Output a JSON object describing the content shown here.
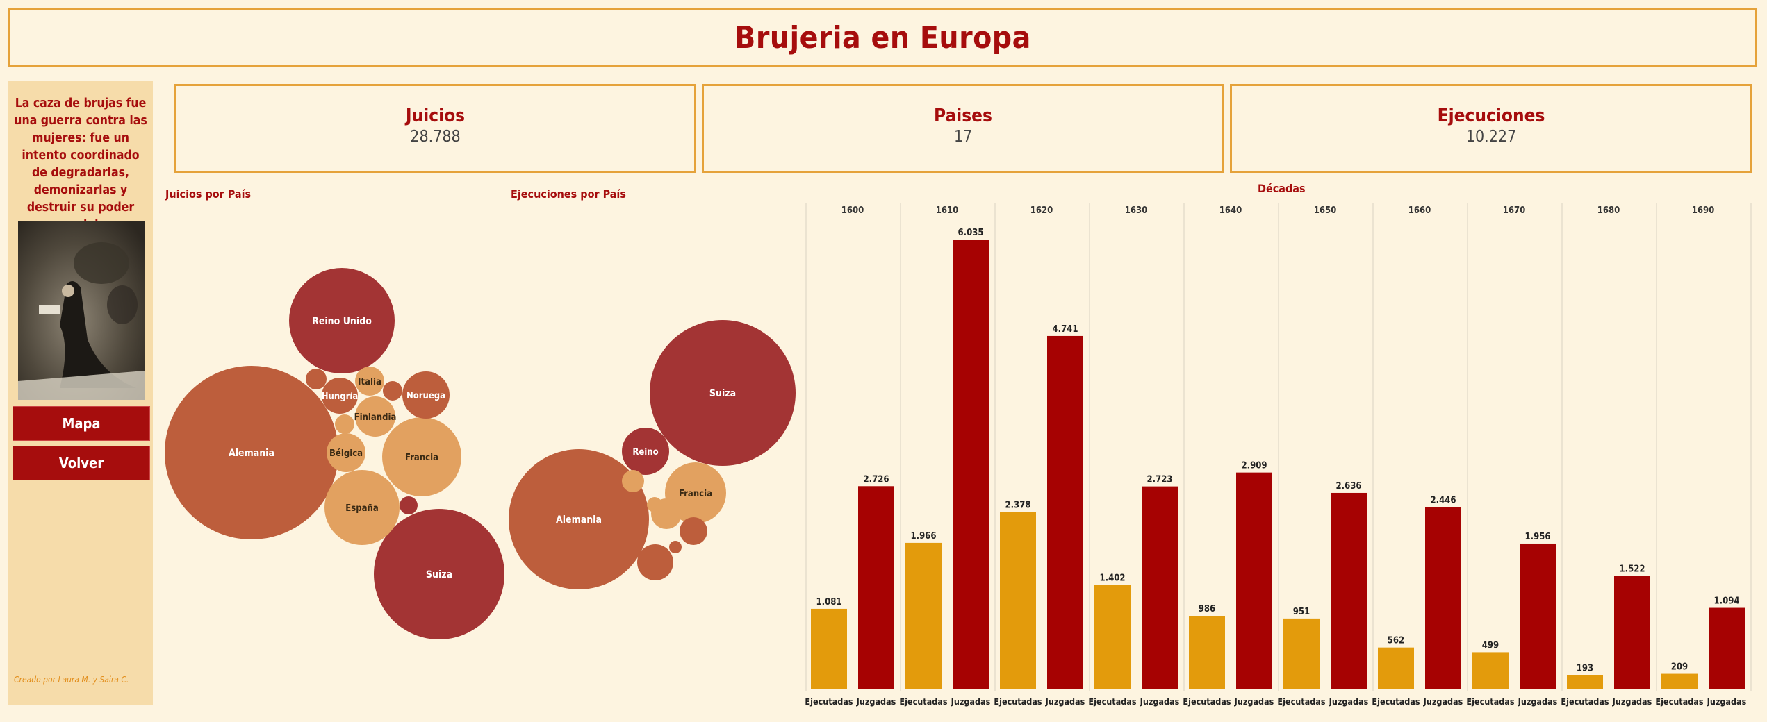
{
  "title": "Brujeria en Europa",
  "sidebar": {
    "quote": "La caza de brujas fue una guerra contra las mujeres: fue un intento coordinado de degradarlas, demonizarlas y destruir su poder social",
    "buttons": [
      "Mapa",
      "Volver"
    ],
    "credit": "Creado por Laura M. y Saira C."
  },
  "kpis": [
    {
      "label": "Juicios",
      "value": "28.788"
    },
    {
      "label": "Paises",
      "value": "17"
    },
    {
      "label": "Ejecuciones",
      "value": "10.227"
    }
  ],
  "section_labels": {
    "juicios": "Juicios por País",
    "ejecuciones": "Ejecuciones por País",
    "decadas": "Décadas"
  },
  "colors": {
    "dark_red": "#a33434",
    "rust": "#bd5e3c",
    "orange": "#e2a160",
    "bar_executed": "#e39b0c",
    "bar_judged": "#a60202",
    "accent": "#a60d0d",
    "border": "#e5a23a"
  },
  "chart_data": [
    {
      "type": "bubble",
      "title": "Juicios por País",
      "bubbles": [
        {
          "label": "Alemania",
          "color": "rust"
        },
        {
          "label": "Reino Unido",
          "color": "dark_red"
        },
        {
          "label": "Suiza",
          "color": "dark_red"
        },
        {
          "label": "Francia",
          "color": "orange"
        },
        {
          "label": "España",
          "color": "orange"
        },
        {
          "label": "Noruega",
          "color": "rust"
        },
        {
          "label": "Hungría",
          "color": "rust"
        },
        {
          "label": "Italia",
          "color": "orange"
        },
        {
          "label": "Finlandia",
          "color": "orange"
        },
        {
          "label": "Bélgica",
          "color": "orange"
        },
        {
          "label": "",
          "color": "rust"
        },
        {
          "label": "",
          "color": "rust"
        },
        {
          "label": "",
          "color": "orange"
        },
        {
          "label": "",
          "color": "dark_red"
        }
      ]
    },
    {
      "type": "bubble",
      "title": "Ejecuciones por País",
      "bubbles": [
        {
          "label": "Suiza",
          "color": "dark_red"
        },
        {
          "label": "Alemania",
          "color": "rust"
        },
        {
          "label": "Reino",
          "color": "dark_red"
        },
        {
          "label": "Francia",
          "color": "orange"
        },
        {
          "label": "",
          "color": "rust"
        },
        {
          "label": "",
          "color": "orange"
        },
        {
          "label": "",
          "color": "rust"
        },
        {
          "label": "",
          "color": "orange"
        },
        {
          "label": "",
          "color": "orange"
        },
        {
          "label": "",
          "color": "rust"
        }
      ]
    },
    {
      "type": "bar",
      "title": "Décadas",
      "categories": [
        "1600",
        "1610",
        "1620",
        "1630",
        "1640",
        "1650",
        "1660",
        "1670",
        "1680",
        "1690"
      ],
      "series": [
        {
          "name": "Ejecutadas",
          "values": [
            1081,
            1966,
            2378,
            1402,
            986,
            951,
            562,
            499,
            193,
            209
          ],
          "labels": [
            "1.081",
            "1.966",
            "2.378",
            "1.402",
            "986",
            "951",
            "562",
            "499",
            "193",
            "209"
          ]
        },
        {
          "name": "Juzgadas",
          "values": [
            2726,
            6035,
            4741,
            2723,
            2909,
            2636,
            2446,
            1956,
            1522,
            1094
          ],
          "labels": [
            "2.726",
            "6.035",
            "4.741",
            "2.723",
            "2.909",
            "2.636",
            "2.446",
            "1.956",
            "1.522",
            "1.094"
          ]
        }
      ],
      "ylim": [
        0,
        6035
      ]
    }
  ]
}
